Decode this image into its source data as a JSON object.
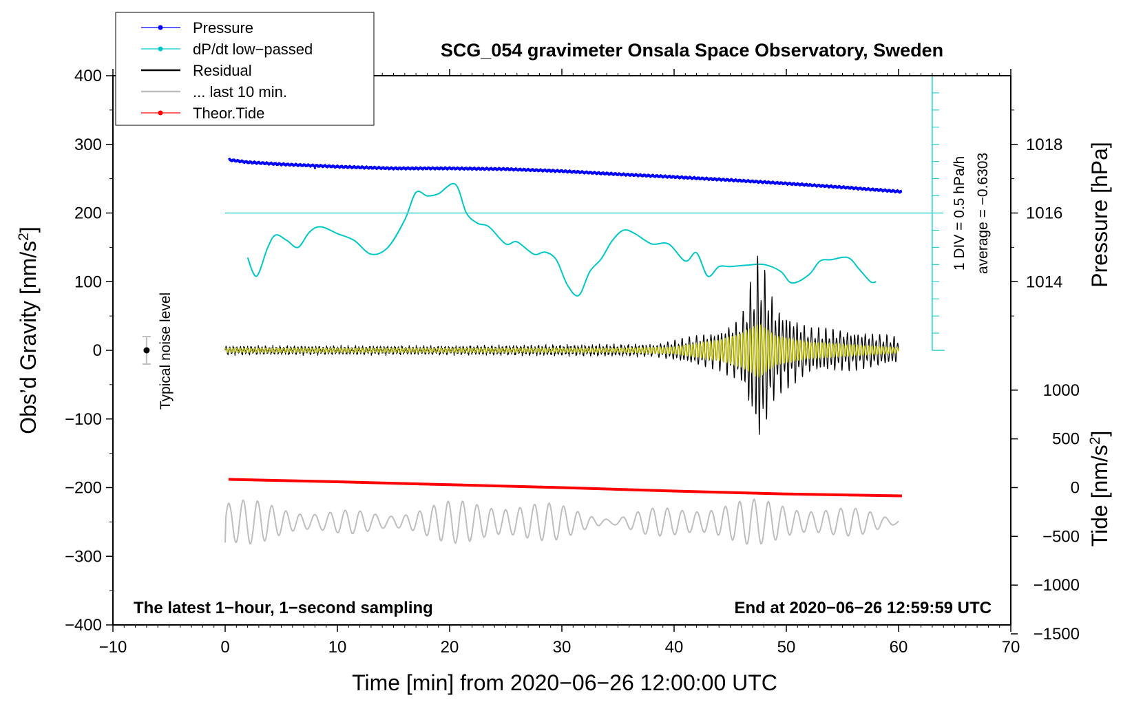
{
  "chart_data": {
    "type": "line",
    "title": "SCG_054 gravimeter Onsala Space Observatory, Sweden",
    "xlabel": "Time [min] from 2020−06−26 12:00:00 UTC",
    "ylabel_main": "Obs’d Gravity [nm/s",
    "ylabel_main_sup": "2",
    "ylabel_main_end": "]",
    "ylabel_pressure": "Pressure [hPa]",
    "ylabel_tide": "Tide [nm/s",
    "ylabel_tide_sup": "2",
    "ylabel_tide_end": "]",
    "xlim": [
      -10,
      70
    ],
    "ylim": [
      -400,
      400
    ],
    "pressure_lim": [
      1012,
      1020
    ],
    "tide_lim": [
      -1500,
      1000
    ],
    "x_ticks": [
      -10,
      0,
      10,
      20,
      30,
      40,
      50,
      60,
      70
    ],
    "x_tick_labels": [
      "−10",
      "0",
      "10",
      "20",
      "30",
      "40",
      "50",
      "60",
      "70"
    ],
    "y_ticks": [
      -400,
      -300,
      -200,
      -100,
      0,
      100,
      200,
      300,
      400
    ],
    "y_tick_labels": [
      "−400",
      "−300",
      "−200",
      "−100",
      "0",
      "100",
      "200",
      "300",
      "400"
    ],
    "pressure_ticks": [
      1014,
      1016,
      1018
    ],
    "pressure_tick_labels": [
      "1014",
      "1016",
      "1018"
    ],
    "tide_ticks": [
      -1500,
      -1000,
      -500,
      0,
      500,
      1000
    ],
    "tide_tick_labels": [
      "−1500",
      "−1000",
      "−500",
      "0",
      "500",
      "1000"
    ],
    "legend": {
      "position": "top-left",
      "entries": [
        {
          "label": "Pressure",
          "color": "#0000ff",
          "marker": true
        },
        {
          "label": "dP/dt low−passed",
          "color": "#00c8c8",
          "marker": true
        },
        {
          "label": "Residual",
          "color": "#000000",
          "marker": false
        },
        {
          "label": "... last 10 min.",
          "color": "#bebebe",
          "marker": false
        },
        {
          "label": "Theor.Tide",
          "color": "#ff0000",
          "marker": true
        }
      ]
    },
    "annotations": {
      "bottom_left": "The latest 1−hour, 1−second sampling",
      "bottom_right": "End at 2020−06−26 12:59:59 UTC",
      "noise_label": "Typical noise level",
      "div_label": "1 DIV = 0.5 hPa/h",
      "average_label": "average = −0.6303"
    },
    "noise_bar": {
      "x": -7,
      "y": 0,
      "err": 20
    },
    "div_scale": {
      "x": 63,
      "y_top": 400,
      "y_bottom": 0,
      "y_reference": 200
    },
    "series": [
      {
        "name": "Pressure",
        "axis": "pressure",
        "color": "#0000ff",
        "x": [
          0.3,
          2,
          5,
          10,
          15,
          20,
          25,
          30,
          35,
          40,
          45,
          50,
          55,
          60.3
        ],
        "y": [
          1017.55,
          1017.48,
          1017.42,
          1017.35,
          1017.3,
          1017.3,
          1017.28,
          1017.22,
          1017.13,
          1017.05,
          1016.96,
          1016.86,
          1016.75,
          1016.62
        ]
      },
      {
        "name": "dP/dt low−passed",
        "axis": "main",
        "color": "#00c8c8",
        "x": [
          2,
          2.8,
          3.8,
          4.5,
          5.5,
          6.5,
          7.5,
          8.5,
          10,
          11.5,
          13,
          14.5,
          16,
          17,
          18,
          19,
          20.5,
          21.5,
          22.5,
          23.5,
          25,
          26,
          27.5,
          28.5,
          29.5,
          30.5,
          31.5,
          32.5,
          33.5,
          34.5,
          35.5,
          36.5,
          38,
          39.5,
          41,
          42,
          43,
          44,
          45,
          46.5,
          48,
          49.5,
          50.5,
          52,
          53,
          54,
          55.5,
          56.5,
          57.5,
          58
        ],
        "y": [
          135,
          108,
          150,
          168,
          160,
          150,
          172,
          180,
          170,
          160,
          140,
          150,
          190,
          230,
          225,
          228,
          242,
          200,
          185,
          180,
          155,
          158,
          140,
          143,
          132,
          95,
          80,
          115,
          133,
          160,
          175,
          170,
          155,
          155,
          130,
          142,
          108,
          122,
          122,
          124,
          125,
          115,
          98,
          110,
          130,
          132,
          135,
          118,
          100,
          100
        ]
      },
      {
        "name": "Residual",
        "axis": "main",
        "color": "#000000",
        "x": [
          0,
          60
        ],
        "y": [
          0,
          0
        ],
        "envelope": {
          "x": [
            0,
            20,
            38,
            44,
            46,
            47.6,
            49,
            52,
            56,
            60
          ],
          "amplitude": [
            5,
            5,
            8,
            30,
            50,
            150,
            70,
            35,
            30,
            20
          ]
        }
      },
      {
        "name": "Residual filtered",
        "axis": "main",
        "color": "#c8c800",
        "x": [
          0,
          60
        ],
        "y": [
          0,
          0
        ],
        "envelope": {
          "x": [
            0,
            35,
            40,
            44,
            46,
            47.6,
            49,
            52,
            56,
            60
          ],
          "amplitude": [
            3,
            3,
            5,
            15,
            25,
            40,
            22,
            12,
            8,
            4
          ]
        }
      },
      {
        "name": "Theor.Tide",
        "axis": "tide",
        "color": "#ff0000",
        "x": [
          0.3,
          10,
          20,
          30,
          40,
          50,
          60.3
        ],
        "y": [
          85,
          60,
          30,
          0,
          -35,
          -65,
          -85
        ]
      },
      {
        "name": "... last 10 min.",
        "axis": "main",
        "color": "#bebebe",
        "x": [
          0,
          60
        ],
        "y": [
          -250,
          -250
        ],
        "amplitude": 25
      }
    ]
  }
}
